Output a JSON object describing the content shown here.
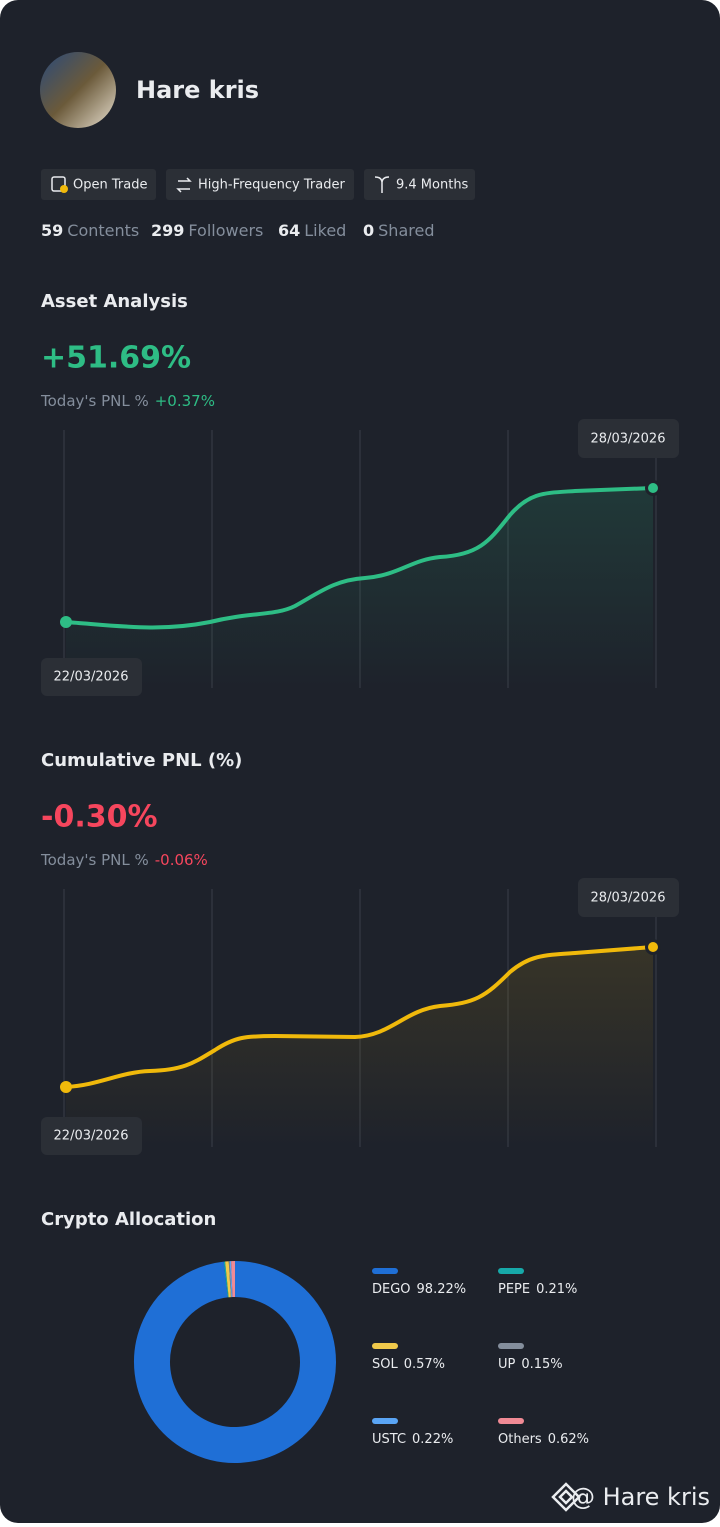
{
  "profile": {
    "name": "Hare kris",
    "badges": [
      "Open Trade",
      "High-Frequency Trader",
      "9.4 Months"
    ],
    "stats": [
      {
        "value": 59,
        "label": "Contents"
      },
      {
        "value": 299,
        "label": "Followers"
      },
      {
        "value": 64,
        "label": "Liked"
      },
      {
        "value": 0,
        "label": "Shared"
      }
    ]
  },
  "asset_analysis": {
    "title": "Asset Analysis",
    "value": "+51.69%",
    "today_label": "Today's PNL %",
    "today_value": "+0.37%",
    "start_date": "22/03/2026",
    "end_date": "28/03/2026"
  },
  "cumulative_pnl": {
    "title": "Cumulative PNL (%)",
    "value": "-0.30%",
    "today_label": "Today's PNL %",
    "today_value": "-0.06%",
    "start_date": "22/03/2026",
    "end_date": "28/03/2026"
  },
  "allocation": {
    "title": "Crypto Allocation",
    "type": "donut",
    "categories": [
      "DEGO",
      "PEPE",
      "SOL",
      "UP",
      "USTC",
      "Others"
    ],
    "values": [
      98.22,
      0.21,
      0.57,
      0.15,
      0.22,
      0.62
    ],
    "value_labels": [
      "98.22%",
      "0.21%",
      "0.57%",
      "0.15%",
      "0.22%",
      "0.62%"
    ],
    "colors": [
      "#1f6fd6",
      "#17a9a9",
      "#f0c94b",
      "#848e9c",
      "#5aa5f5",
      "#f08a95"
    ]
  },
  "watermark": "@ Hare kris"
}
